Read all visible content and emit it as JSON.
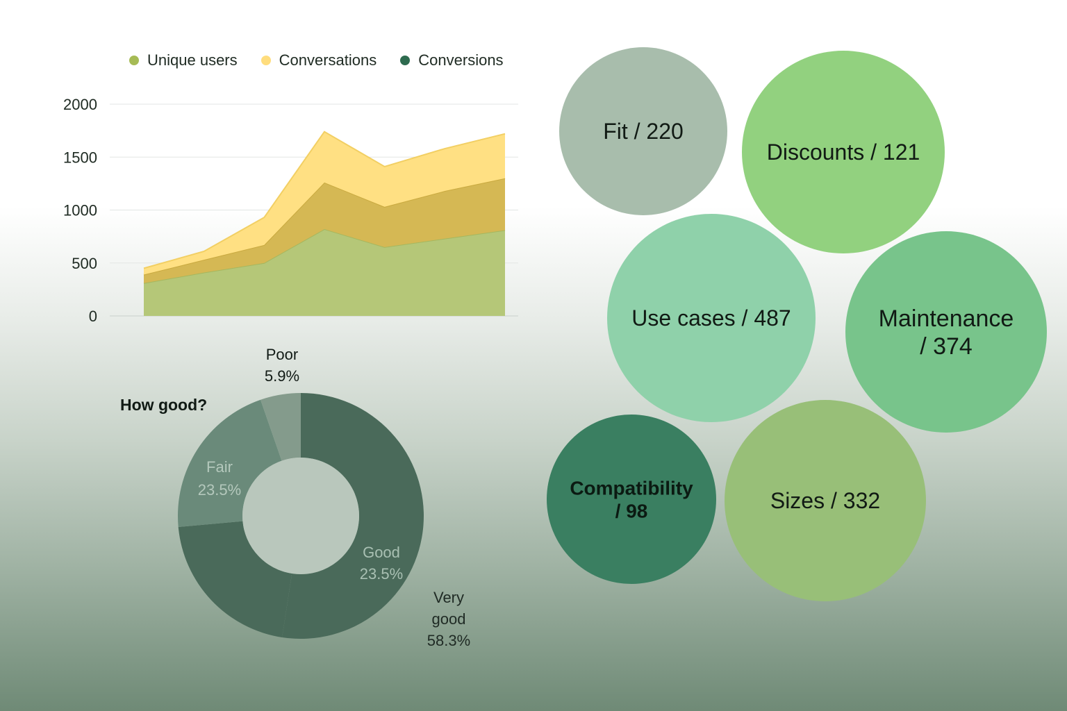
{
  "chart_data": [
    {
      "type": "area",
      "stacked": true,
      "x": [
        "1",
        "2",
        "3",
        "4",
        "5",
        "6",
        "7"
      ],
      "series": [
        {
          "name": "Unique users",
          "color": "#b5c778",
          "values": [
            310,
            410,
            500,
            820,
            650,
            730,
            810
          ]
        },
        {
          "name": "Conversations",
          "color": "#d5b854",
          "values": [
            80,
            120,
            170,
            440,
            380,
            450,
            490
          ]
        },
        {
          "name": "Conversions",
          "color": "#ffe083",
          "values": [
            60,
            80,
            260,
            480,
            380,
            400,
            420
          ]
        }
      ],
      "legend_colors": [
        "#a6bb55",
        "#ffdd7d",
        "#2e6b4f"
      ],
      "yticks": [
        "0",
        "500",
        "1000",
        "1500",
        "2000"
      ],
      "ylim": [
        0,
        2000
      ],
      "grid": true,
      "legend_position": "top"
    },
    {
      "type": "pie",
      "donut": true,
      "title": "How good?",
      "slices": [
        {
          "label": "Very good",
          "value": 58.3,
          "value_label": "58.3%",
          "color": "#4a6a5a"
        },
        {
          "label": "Good",
          "value": 23.5,
          "value_label": "23.5%",
          "color": "#4a6a5a"
        },
        {
          "label": "Fair",
          "value": 23.5,
          "value_label": "23.5%",
          "color": "#6a8a7a"
        },
        {
          "label": "Poor",
          "value": 5.9,
          "value_label": "5.9%",
          "color": "#849b8c"
        }
      ]
    },
    {
      "type": "bubble",
      "bubbles": [
        {
          "label": "Fit / 220",
          "lines": [
            "Fit / 220"
          ],
          "value": 220,
          "color": "#a8bdac"
        },
        {
          "label": "Discounts / 121",
          "lines": [
            "Discounts / 121"
          ],
          "value": 121,
          "color": "#92d17f"
        },
        {
          "label": "Use cases / 487",
          "lines": [
            "Use cases / 487"
          ],
          "value": 487,
          "color": "#8fd1aa"
        },
        {
          "label": "Maintenance / 374",
          "lines": [
            "Maintenance",
            "/ 374"
          ],
          "value": 374,
          "color": "#78c48b"
        },
        {
          "label": "Compatibility / 98",
          "lines": [
            "Compatibility",
            "/ 98"
          ],
          "value": 98,
          "color": "#3a7f61"
        },
        {
          "label": "Sizes / 332",
          "lines": [
            "Sizes / 332"
          ],
          "value": 332,
          "color": "#98bf78"
        }
      ]
    }
  ]
}
